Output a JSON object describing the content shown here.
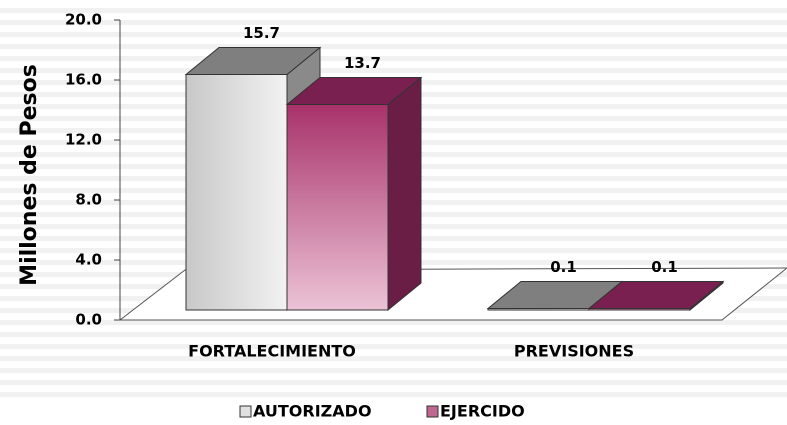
{
  "chart_data": {
    "type": "bar3d",
    "categories": [
      "FORTALECIMIENTO",
      "PREVISIONES"
    ],
    "series": [
      {
        "name": "AUTORIZADO",
        "color": "#bfbfbf",
        "values": [
          15.7,
          0.1
        ]
      },
      {
        "name": "EJERCIDO",
        "color": "#a33a6a",
        "values": [
          13.7,
          0.1
        ]
      }
    ],
    "y_label": "Millones de Pesos",
    "ylim": [
      0,
      20
    ],
    "yticks": [
      {
        "value": 0,
        "label": "0.0"
      },
      {
        "value": 4,
        "label": "4.0"
      },
      {
        "value": 8,
        "label": "8.0"
      },
      {
        "value": 12,
        "label": "12.0"
      },
      {
        "value": 16,
        "label": "16.0"
      },
      {
        "value": 20,
        "label": "20.0"
      }
    ],
    "legend": "bottom"
  }
}
